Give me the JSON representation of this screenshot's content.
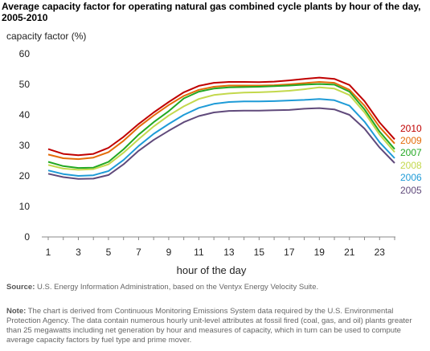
{
  "chart_data": {
    "type": "line",
    "title": "Average capacity factor for operating natural gas combined cycle plants by hour of the day, 2005-2010",
    "ylabel": "capacity factor (%)",
    "xlabel": "hour of the day",
    "ylim": [
      0,
      60
    ],
    "yticks": [
      0,
      10,
      20,
      30,
      40,
      50,
      60
    ],
    "xlim": [
      1,
      24
    ],
    "xticks": [
      1,
      3,
      5,
      7,
      9,
      11,
      13,
      15,
      17,
      19,
      21,
      23
    ],
    "x": [
      1,
      2,
      3,
      4,
      5,
      6,
      7,
      8,
      9,
      10,
      11,
      12,
      13,
      14,
      15,
      16,
      17,
      18,
      19,
      20,
      21,
      22,
      23,
      24
    ],
    "grid": false,
    "legend": "right, inline labels",
    "series": [
      {
        "name": "2010",
        "color": "#c00000",
        "values": [
          28.8,
          27.2,
          26.8,
          27.2,
          29.2,
          32.8,
          37.0,
          40.8,
          44.2,
          47.4,
          49.5,
          50.5,
          50.8,
          50.8,
          50.7,
          50.9,
          51.3,
          51.8,
          52.2,
          51.8,
          49.8,
          44.5,
          37.5,
          32.0
        ]
      },
      {
        "name": "2009",
        "color": "#e46c0a",
        "values": [
          27.0,
          25.8,
          25.5,
          26.0,
          27.8,
          31.5,
          36.0,
          39.8,
          43.2,
          46.2,
          48.2,
          49.2,
          49.6,
          49.6,
          49.6,
          49.7,
          50.0,
          50.4,
          50.8,
          50.5,
          48.2,
          43.0,
          36.0,
          30.6
        ]
      },
      {
        "name": "2007",
        "color": "#22a822",
        "values": [
          24.6,
          23.2,
          22.6,
          22.7,
          24.6,
          28.7,
          33.5,
          37.6,
          41.2,
          45.4,
          47.6,
          48.6,
          49.0,
          49.1,
          49.2,
          49.4,
          49.6,
          49.9,
          50.1,
          49.9,
          47.6,
          41.8,
          34.5,
          28.8
        ]
      },
      {
        "name": "2008",
        "color": "#c3d84c",
        "values": [
          23.6,
          22.4,
          22.0,
          22.2,
          23.8,
          27.6,
          32.0,
          36.2,
          39.8,
          42.8,
          45.2,
          46.5,
          47.0,
          47.3,
          47.4,
          47.6,
          47.9,
          48.4,
          49.0,
          48.6,
          46.5,
          40.8,
          33.5,
          27.8
        ]
      },
      {
        "name": "2006",
        "color": "#1e9bd7",
        "values": [
          21.8,
          20.6,
          20.0,
          20.2,
          21.6,
          25.2,
          29.8,
          33.8,
          37.0,
          40.0,
          42.3,
          43.6,
          44.2,
          44.4,
          44.4,
          44.5,
          44.7,
          44.9,
          45.2,
          44.8,
          43.0,
          37.8,
          31.0,
          25.8
        ]
      },
      {
        "name": "2005",
        "color": "#604a7b",
        "values": [
          20.7,
          19.6,
          19.0,
          19.1,
          20.3,
          23.8,
          28.2,
          31.8,
          34.8,
          37.6,
          39.6,
          40.8,
          41.3,
          41.4,
          41.4,
          41.5,
          41.6,
          42.0,
          42.2,
          41.8,
          40.0,
          35.5,
          29.3,
          24.2
        ]
      }
    ]
  },
  "source": {
    "label": "Source:",
    "text": " U.S. Energy Information Administration, based on the Ventyx Energy Velocity Suite."
  },
  "note": {
    "label": "Note:",
    "text": "  The chart is derived from Continuous Monitoring Emissions System data required by the U.S. Environmental Protection Agency.  The data contain numerous hourly unit-level attributes at fossil fired (coal, gas, and oil) plants greater than 25 megawatts including net generation by hour and measures of capacity, which in turn can be used to compute average capacity factors by fuel type and prime mover."
  }
}
